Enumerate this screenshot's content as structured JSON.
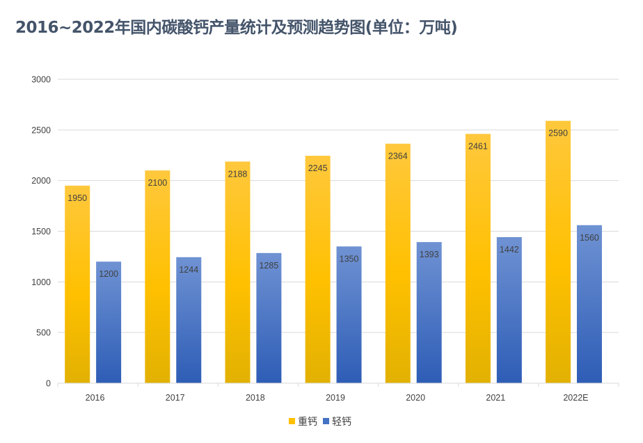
{
  "chart_data": {
    "type": "bar",
    "title": "2016~2022年国内碳酸钙产量统计及预测趋势图(单位：万吨)",
    "categories": [
      "2016",
      "2017",
      "2018",
      "2019",
      "2020",
      "2021",
      "2022E"
    ],
    "series": [
      {
        "name": "重钙",
        "values": [
          1950,
          2100,
          2188,
          2245,
          2364,
          2461,
          2590
        ],
        "color": "#ffc000",
        "color_dark": "#e6b000"
      },
      {
        "name": "轻钙",
        "values": [
          1200,
          1244,
          1285,
          1350,
          1393,
          1442,
          1560
        ],
        "color": "#4472c4",
        "color_dark": "#2e5fb8"
      }
    ],
    "y_ticks": [
      "0",
      "500",
      "1000",
      "1500",
      "2000",
      "2500",
      "3000"
    ],
    "ylim": [
      0,
      3000
    ],
    "xlabel": "",
    "ylabel": "",
    "grid": true,
    "legend_position": "bottom"
  }
}
